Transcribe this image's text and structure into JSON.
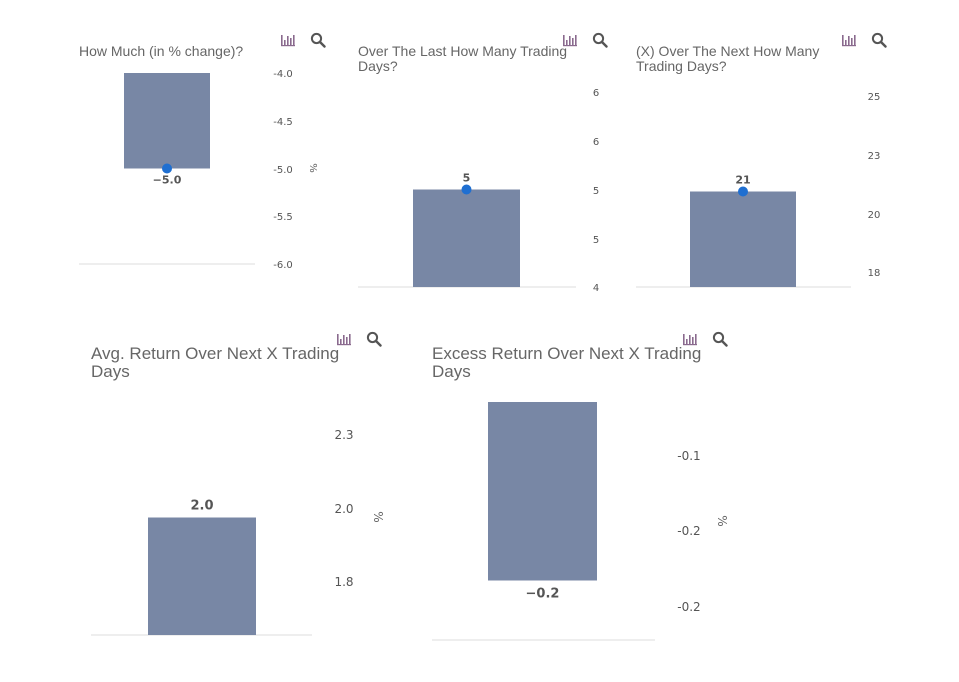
{
  "icons": {
    "chart_type": "bar-chart-icon",
    "zoom": "magnifier-icon"
  },
  "colors": {
    "bar": "#7887a5",
    "marker": "#1f6fd1",
    "baseline": "#dcdcdc",
    "title": "#666666",
    "tick": "#555555",
    "icon": "#8a6a8e"
  },
  "chart_data": [
    {
      "type": "bar",
      "title": "How Much (in % change)?",
      "categories": [
        ""
      ],
      "values": [
        -5.0
      ],
      "data_label": "−5.0",
      "yticks": [
        "-4.0",
        "-4.5",
        "-5.0",
        "-5.5",
        "-6.0"
      ],
      "ylim": [
        -6.0,
        -4.0
      ],
      "ylabel": "%",
      "marker": true
    },
    {
      "type": "bar",
      "title": "Over The Last How Many Trading\nDays?",
      "categories": [
        ""
      ],
      "values": [
        5
      ],
      "data_label": "5",
      "yticks": [
        "6",
        "6",
        "5",
        "5",
        "4"
      ],
      "ylim": [
        4,
        6
      ],
      "ylabel": "",
      "marker": true
    },
    {
      "type": "bar",
      "title": "(X) Over The Next How Many\nTrading Days?",
      "categories": [
        ""
      ],
      "values": [
        21
      ],
      "data_label": "21",
      "yticks": [
        "25",
        "23",
        "20",
        "18"
      ],
      "ylim": [
        16,
        26
      ],
      "ylabel": "",
      "marker": true
    },
    {
      "type": "bar",
      "title": "Avg. Return Over Next X Trading\nDays",
      "categories": [
        ""
      ],
      "values": [
        2.0
      ],
      "data_label": "2.0",
      "yticks": [
        "2.3",
        "2.0",
        "1.8"
      ],
      "ylim": [
        1.6,
        2.4
      ],
      "ylabel": "%",
      "marker": false
    },
    {
      "type": "bar",
      "title": "Excess Return Over Next X Trading\nDays",
      "categories": [
        ""
      ],
      "values": [
        -0.2
      ],
      "data_label": "−0.2",
      "yticks": [
        "-0.1",
        "-0.2",
        "-0.2"
      ],
      "ylim": [
        -0.25,
        -0.05
      ],
      "ylabel": "%",
      "marker": false
    }
  ]
}
